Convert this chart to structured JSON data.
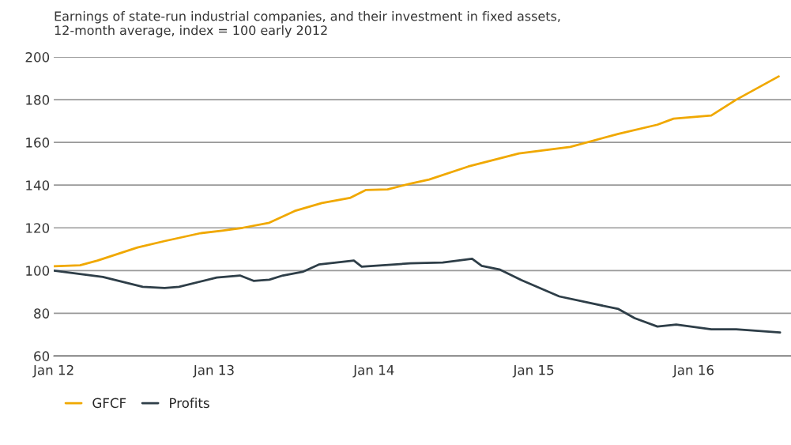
{
  "chart_data": {
    "type": "line",
    "title": "Earnings of state-run industrial companies, and their investment in fixed assets,\n12-month average, index = 100 early 2012",
    "series": [
      {
        "name": "GFCF",
        "color": "#f0a800",
        "x": [
          "2012-01-01",
          "2012-03-01",
          "2012-04-10",
          "2012-07-10",
          "2012-09-10",
          "2012-12-01",
          "2013-01-19",
          "2013-03-07",
          "2013-05-07",
          "2013-07-04",
          "2013-09-04",
          "2013-11-07",
          "2013-12-13",
          "2014-02-01",
          "2014-03-25",
          "2014-05-07",
          "2014-08-04",
          "2014-11-28",
          "2015-03-25",
          "2015-07-13",
          "2015-10-10",
          "2015-11-16",
          "2016-02-10",
          "2016-04-07",
          "2016-07-13"
        ],
        "values": [
          102,
          102.5,
          104.7,
          110.8,
          113.8,
          117.5,
          118.7,
          120,
          122.4,
          127.9,
          131.6,
          134,
          137.7,
          138,
          140.7,
          142.6,
          148.7,
          154.8,
          157.9,
          164,
          168.3,
          171.1,
          172.6,
          180,
          190.9
        ]
      },
      {
        "name": "Profits",
        "color": "#2e3e48",
        "x": [
          "2012-01-01",
          "2012-04-22",
          "2012-07-22",
          "2012-09-10",
          "2012-10-13",
          "2013-01-07",
          "2013-03-01",
          "2013-04-01",
          "2013-05-07",
          "2013-06-07",
          "2013-07-22",
          "2013-08-28",
          "2013-11-16",
          "2013-12-04",
          "2014-03-25",
          "2014-06-07",
          "2014-08-13",
          "2014-09-04",
          "2014-10-16",
          "2014-12-04",
          "2015-02-28",
          "2015-07-13",
          "2015-08-19",
          "2015-10-10",
          "2015-11-22",
          "2016-02-10",
          "2016-04-07",
          "2016-07-16"
        ],
        "values": [
          100,
          97,
          92.4,
          91.8,
          92.4,
          96.7,
          97.7,
          95.2,
          95.7,
          97.7,
          99.4,
          102.8,
          104.7,
          101.8,
          103.4,
          103.8,
          105.5,
          102.2,
          100.4,
          95.5,
          87.9,
          82,
          77.7,
          73.8,
          74.7,
          72.5,
          72.5,
          71
        ]
      }
    ],
    "xlim": [
      "2012-01-01",
      "2016-08-10"
    ],
    "xticks": [
      {
        "value": "2012-01-01",
        "label": "Jan 12"
      },
      {
        "value": "2013-01-01",
        "label": "Jan 13"
      },
      {
        "value": "2014-01-01",
        "label": "Jan 14"
      },
      {
        "value": "2015-01-01",
        "label": "Jan 15"
      },
      {
        "value": "2016-01-01",
        "label": "Jan 16"
      }
    ],
    "ylim": [
      60,
      200
    ],
    "yticks": [
      60,
      80,
      100,
      120,
      140,
      160,
      180,
      200
    ],
    "grid": "y",
    "legend": "bottom left",
    "line_style": "solid",
    "marker": "none"
  }
}
